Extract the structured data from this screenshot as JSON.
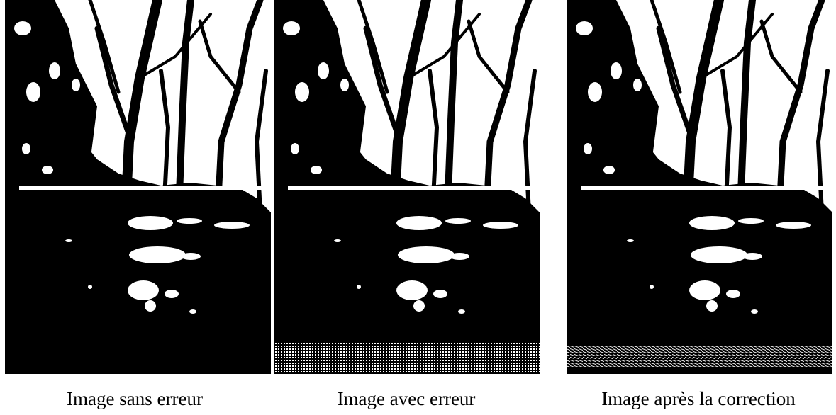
{
  "figures": [
    {
      "caption": "Image sans erreur"
    },
    {
      "caption": "Image avec erreur"
    },
    {
      "caption": "Image après la correction"
    }
  ]
}
